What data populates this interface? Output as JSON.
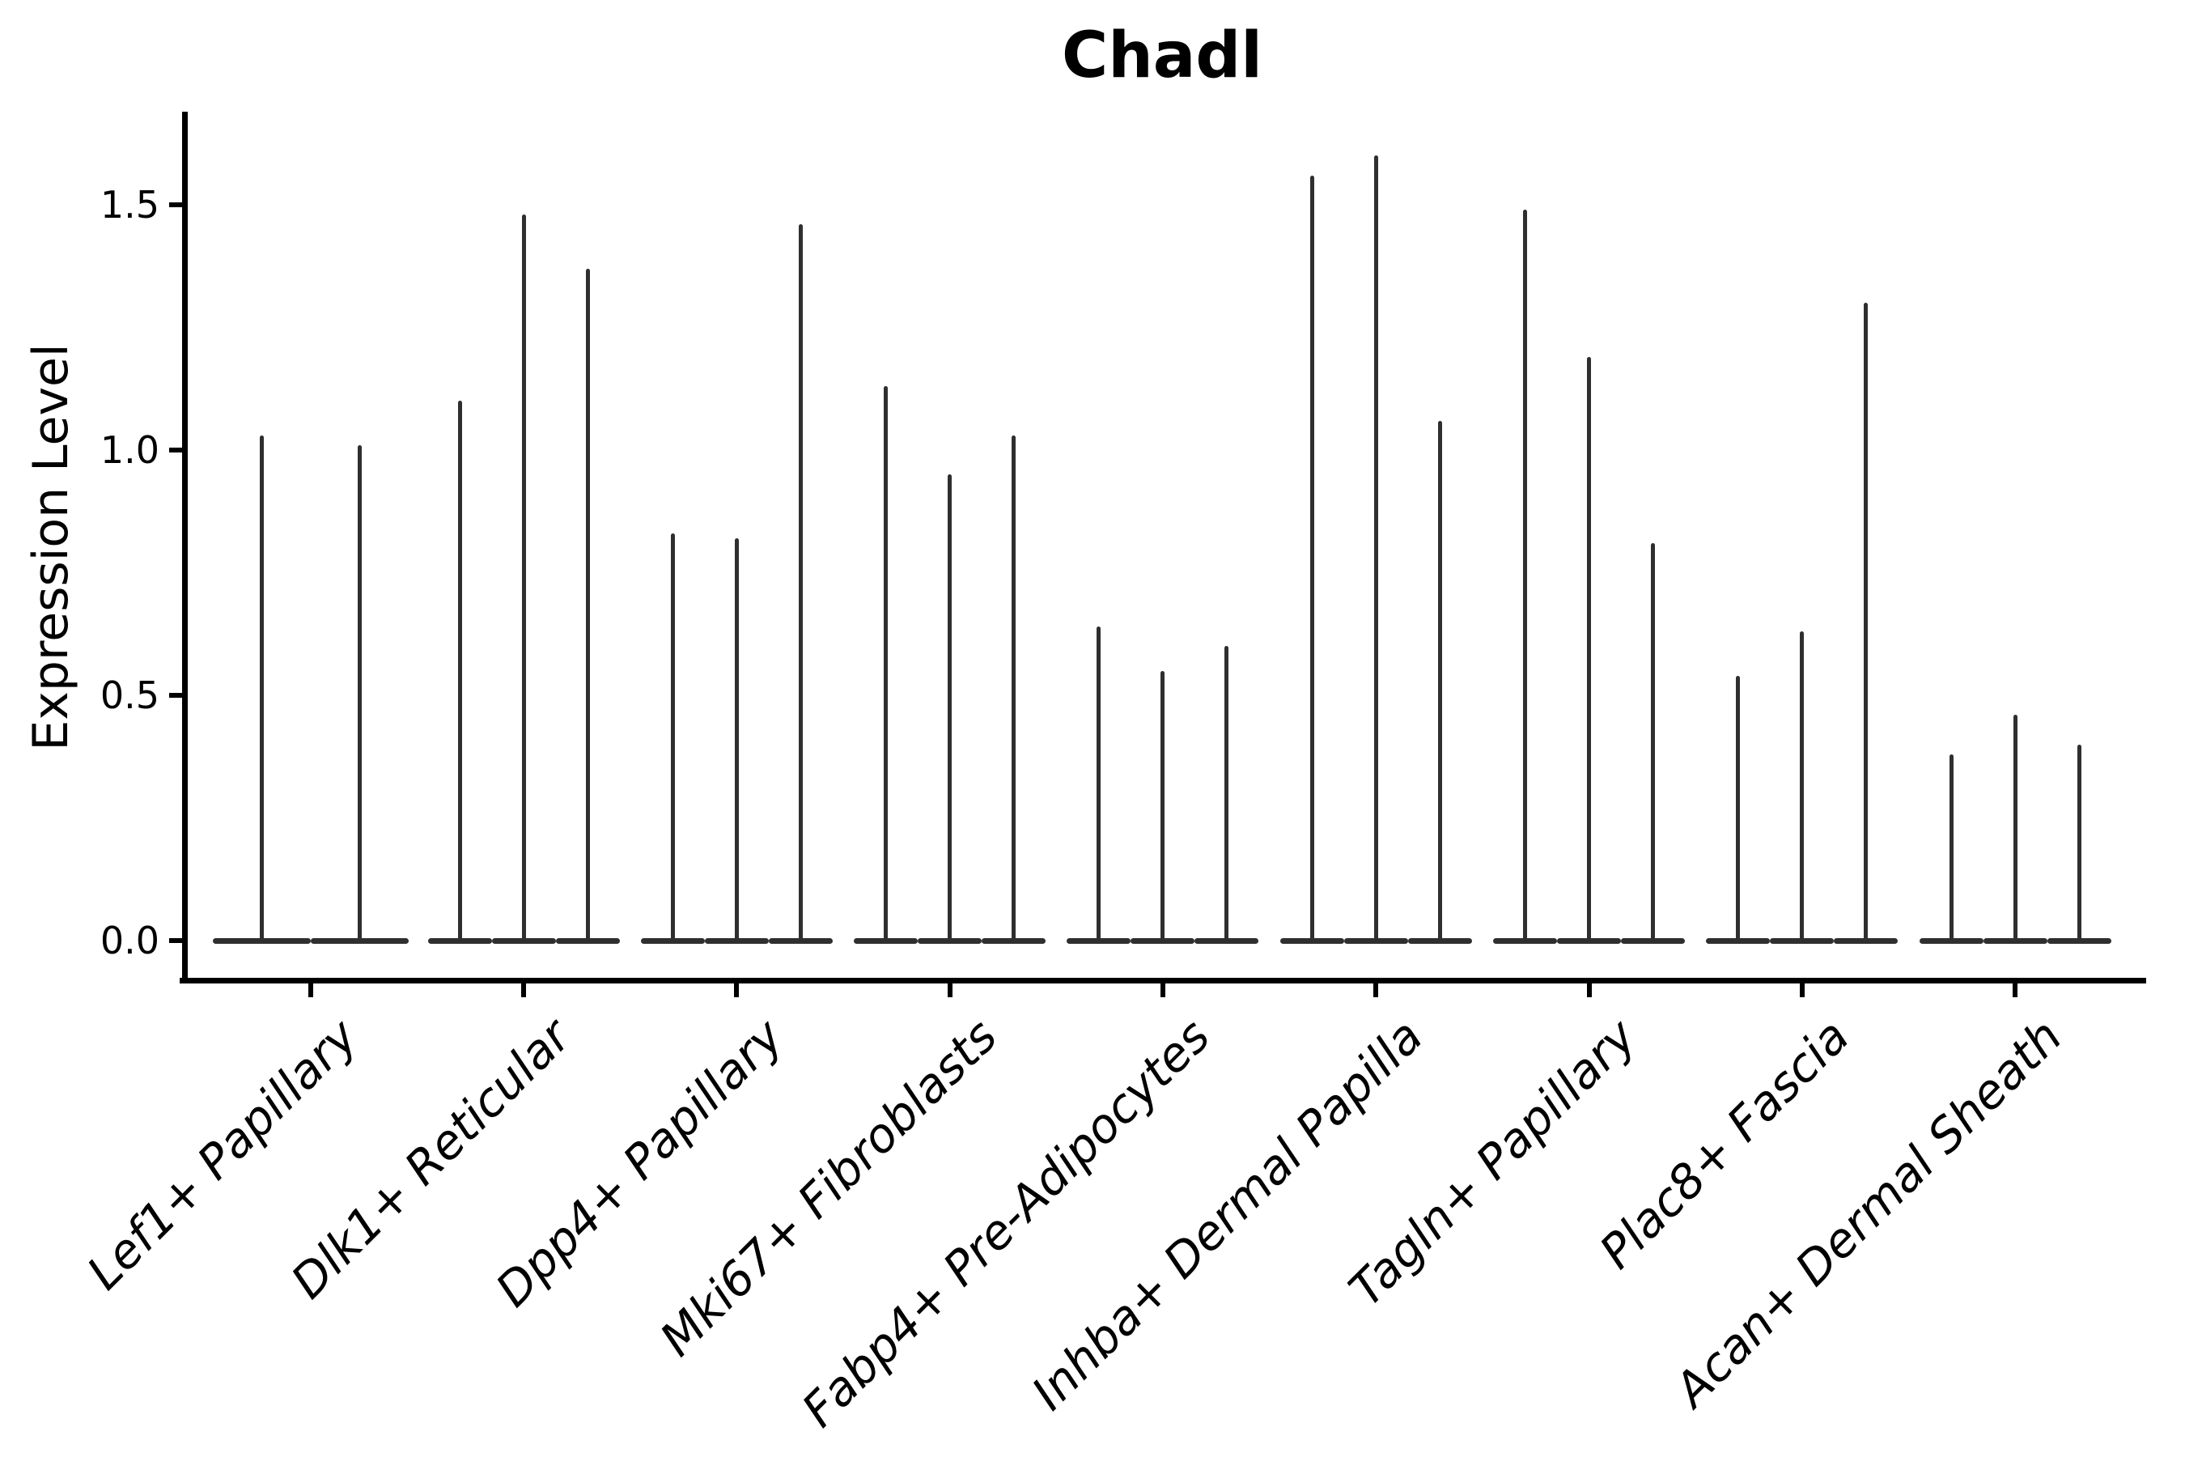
{
  "chart_data": {
    "type": "violin",
    "title": "Chadl",
    "xlabel": "",
    "ylabel": "Expression Level",
    "ytick_labels": [
      "0.0",
      "0.5",
      "1.0",
      "1.5"
    ],
    "ytick_values": [
      0.0,
      0.5,
      1.0,
      1.5
    ],
    "ylim": [
      -0.08,
      1.69
    ],
    "grid": false,
    "legend": "none",
    "categories": [
      "Lef1+ Papillary",
      "Dlk1+ Reticular",
      "Dpp4+ Papillary",
      "Mki67+ Fibroblasts",
      "Fabp4+ Pre-Adipocytes",
      "Inhba+ Dermal Papilla",
      "Tagln+ Papillary",
      "Plac8+ Fascia",
      "Acan+ Dermal Sheath"
    ],
    "series": [
      {
        "category": "Lef1+ Papillary",
        "violin_maxima": [
          1.03,
          1.01
        ]
      },
      {
        "category": "Dlk1+ Reticular",
        "violin_maxima": [
          1.1,
          1.48,
          1.37
        ]
      },
      {
        "category": "Dpp4+ Papillary",
        "violin_maxima": [
          0.83,
          0.82,
          1.46
        ]
      },
      {
        "category": "Mki67+ Fibroblasts",
        "violin_maxima": [
          1.13,
          0.95,
          1.03
        ]
      },
      {
        "category": "Fabp4+ Pre-Adipocytes",
        "violin_maxima": [
          0.64,
          0.55,
          0.6
        ]
      },
      {
        "category": "Inhba+ Dermal Papilla",
        "violin_maxima": [
          1.56,
          1.6,
          1.06
        ]
      },
      {
        "category": "Tagln+ Papillary",
        "violin_maxima": [
          1.49,
          1.19,
          0.81
        ]
      },
      {
        "category": "Plac8+ Fascia",
        "violin_maxima": [
          0.54,
          0.63,
          1.3
        ]
      },
      {
        "category": "Acan+ Dermal Sheath",
        "violin_maxima": [
          0.38,
          0.46,
          0.4
        ]
      }
    ],
    "violin_baseline_value": 0.0,
    "colors": {
      "violin": "#2f2f2f",
      "axis": "#000000",
      "text": "#000000",
      "background": "#ffffff"
    }
  }
}
